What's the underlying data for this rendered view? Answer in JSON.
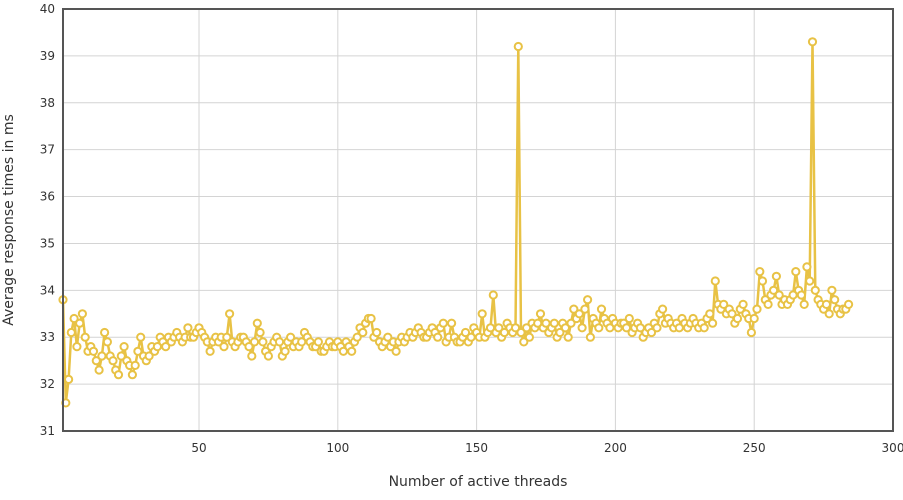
{
  "chart_data": {
    "type": "line",
    "title": "",
    "xlabel": "Number of active threads",
    "ylabel": "Average response times in ms",
    "xlim": [
      1,
      300
    ],
    "ylim": [
      31,
      40
    ],
    "x_ticks": [
      50,
      100,
      150,
      200,
      250,
      300
    ],
    "y_ticks": [
      31,
      32,
      33,
      34,
      35,
      36,
      37,
      38,
      39,
      40
    ],
    "grid": true,
    "legend": "none",
    "colors": {
      "line": "#e8c245",
      "marker_fill": "#ffffff",
      "grid": "#d4d4d4",
      "frame": "#555555"
    },
    "series": [
      {
        "x_start": 1,
        "x_step": 1,
        "values": [
          33.8,
          31.6,
          32.1,
          33.1,
          33.4,
          32.8,
          33.3,
          33.5,
          33.0,
          32.7,
          32.8,
          32.7,
          32.5,
          32.3,
          32.6,
          33.1,
          32.9,
          32.6,
          32.5,
          32.3,
          32.2,
          32.6,
          32.8,
          32.5,
          32.4,
          32.2,
          32.4,
          32.7,
          33.0,
          32.6,
          32.5,
          32.6,
          32.8,
          32.7,
          32.8,
          33.0,
          32.9,
          32.8,
          33.0,
          32.9,
          33.0,
          33.1,
          33.0,
          32.9,
          33.0,
          33.2,
          33.0,
          33.0,
          33.1,
          33.2,
          33.1,
          33.0,
          32.9,
          32.7,
          32.9,
          33.0,
          32.9,
          33.0,
          32.8,
          33.0,
          33.5,
          32.9,
          32.8,
          32.9,
          33.0,
          33.0,
          32.9,
          32.8,
          32.6,
          32.9,
          33.3,
          33.1,
          32.9,
          32.7,
          32.6,
          32.8,
          32.9,
          33.0,
          32.9,
          32.6,
          32.7,
          32.9,
          33.0,
          32.8,
          32.9,
          32.8,
          32.9,
          33.1,
          33.0,
          32.9,
          32.8,
          32.8,
          32.9,
          32.7,
          32.7,
          32.8,
          32.9,
          32.8,
          32.8,
          32.9,
          32.8,
          32.7,
          32.9,
          32.8,
          32.7,
          32.9,
          33.0,
          33.2,
          33.1,
          33.3,
          33.4,
          33.4,
          33.0,
          33.1,
          32.9,
          32.8,
          32.9,
          33.0,
          32.8,
          32.9,
          32.7,
          32.9,
          33.0,
          32.9,
          33.0,
          33.1,
          33.0,
          33.1,
          33.2,
          33.1,
          33.0,
          33.0,
          33.1,
          33.2,
          33.1,
          33.0,
          33.2,
          33.3,
          32.9,
          33.0,
          33.3,
          33.0,
          32.9,
          32.9,
          33.0,
          33.1,
          32.9,
          33.0,
          33.2,
          33.1,
          33.0,
          33.5,
          33.0,
          33.1,
          33.2,
          33.9,
          33.1,
          33.2,
          33.0,
          33.1,
          33.3,
          33.2,
          33.1,
          33.2,
          39.2,
          33.1,
          32.9,
          33.2,
          33.0,
          33.3,
          33.2,
          33.3,
          33.5,
          33.2,
          33.3,
          33.1,
          33.2,
          33.3,
          33.0,
          33.1,
          33.3,
          33.2,
          33.0,
          33.3,
          33.6,
          33.4,
          33.5,
          33.2,
          33.6,
          33.8,
          33.0,
          33.4,
          33.3,
          33.2,
          33.6,
          33.4,
          33.3,
          33.2,
          33.4,
          33.3,
          33.2,
          33.3,
          33.3,
          33.2,
          33.4,
          33.1,
          33.2,
          33.3,
          33.2,
          33.0,
          33.1,
          33.2,
          33.1,
          33.3,
          33.2,
          33.5,
          33.6,
          33.3,
          33.4,
          33.3,
          33.2,
          33.3,
          33.2,
          33.4,
          33.3,
          33.2,
          33.3,
          33.4,
          33.3,
          33.2,
          33.3,
          33.2,
          33.4,
          33.5,
          33.3,
          34.2,
          33.7,
          33.6,
          33.7,
          33.5,
          33.6,
          33.5,
          33.3,
          33.4,
          33.6,
          33.7,
          33.5,
          33.4,
          33.1,
          33.4,
          33.6,
          34.4,
          34.2,
          33.8,
          33.7,
          33.9,
          34.0,
          34.3,
          33.9,
          33.7,
          33.8,
          33.7,
          33.8,
          33.9,
          34.4,
          34.0,
          33.9,
          33.7,
          34.5,
          34.2,
          39.3,
          34.0,
          33.8,
          33.7,
          33.6,
          33.7,
          33.5,
          34.0,
          33.8,
          33.6,
          33.5,
          33.6,
          33.6,
          33.7
        ]
      }
    ]
  }
}
